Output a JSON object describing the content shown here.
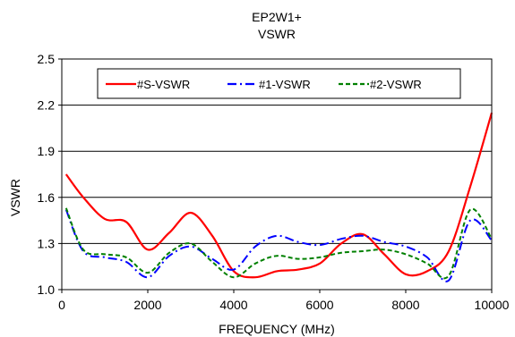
{
  "chart_data": {
    "type": "line",
    "title": "EP2W1+",
    "subtitle": "VSWR",
    "xlabel": "FREQUENCY (MHz)",
    "ylabel": "VSWR",
    "xlim": [
      0,
      10000
    ],
    "ylim": [
      1.0,
      2.5
    ],
    "xticks": [
      "0",
      "2000",
      "4000",
      "6000",
      "8000",
      "10000"
    ],
    "yticks": [
      "1.0",
      "1.3",
      "1.6",
      "1.9",
      "2.2",
      "2.5"
    ],
    "grid": "horizontal",
    "legend_position": "top-center",
    "series": [
      {
        "name": "#S-VSWR",
        "color": "#ff0000",
        "dash": "solid",
        "x": [
          100,
          500,
          1000,
          1500,
          2000,
          2500,
          3000,
          3500,
          4000,
          4500,
          5000,
          5500,
          6000,
          6500,
          7000,
          7500,
          8000,
          8500,
          9000,
          9500,
          10000
        ],
        "y": [
          1.75,
          1.6,
          1.46,
          1.44,
          1.26,
          1.37,
          1.5,
          1.35,
          1.12,
          1.08,
          1.12,
          1.13,
          1.17,
          1.3,
          1.36,
          1.23,
          1.1,
          1.12,
          1.25,
          1.67,
          2.15
        ]
      },
      {
        "name": "#1-VSWR",
        "color": "#0000ff",
        "dash": "dashdot",
        "x": [
          100,
          500,
          1000,
          1500,
          2000,
          2500,
          3000,
          3500,
          4000,
          4500,
          5000,
          5500,
          6000,
          6500,
          7000,
          7500,
          8000,
          8500,
          9000,
          9500,
          10000
        ],
        "y": [
          1.52,
          1.25,
          1.21,
          1.18,
          1.08,
          1.22,
          1.28,
          1.2,
          1.13,
          1.28,
          1.35,
          1.31,
          1.29,
          1.33,
          1.35,
          1.31,
          1.28,
          1.21,
          1.06,
          1.45,
          1.32
        ]
      },
      {
        "name": "#2-VSWR",
        "color": "#008000",
        "dash": "dashed",
        "x": [
          100,
          500,
          1000,
          1500,
          2000,
          2500,
          3000,
          3500,
          4000,
          4500,
          5000,
          5500,
          6000,
          6500,
          7000,
          7500,
          8000,
          8500,
          9000,
          9500,
          10000
        ],
        "y": [
          1.53,
          1.26,
          1.23,
          1.21,
          1.11,
          1.24,
          1.3,
          1.18,
          1.08,
          1.17,
          1.22,
          1.2,
          1.21,
          1.24,
          1.25,
          1.26,
          1.23,
          1.17,
          1.09,
          1.52,
          1.33
        ]
      }
    ]
  }
}
